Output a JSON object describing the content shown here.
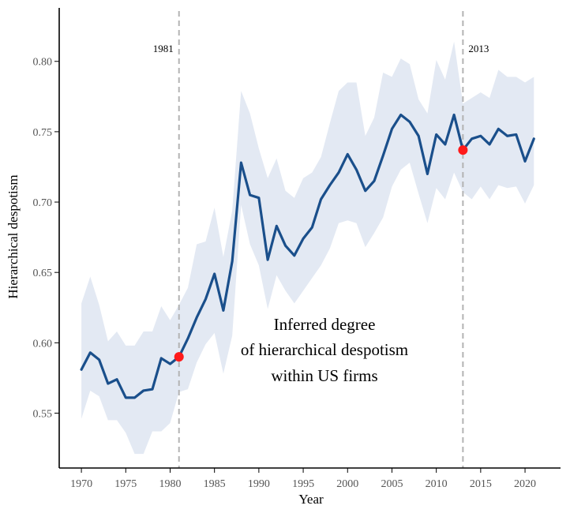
{
  "chart_data": {
    "type": "line",
    "xlabel": "Year",
    "ylabel": "Hierarchical despotism",
    "xlim": [
      1967.5,
      2024
    ],
    "ylim": [
      0.511,
      0.838
    ],
    "x_ticks": [
      1970,
      1975,
      1980,
      1985,
      1990,
      1995,
      2000,
      2005,
      2010,
      2015,
      2020
    ],
    "y_ticks": [
      0.55,
      0.6,
      0.65,
      0.7,
      0.75,
      0.8
    ],
    "y_tick_labels": [
      "0.55",
      "0.60",
      "0.65",
      "0.70",
      "0.75",
      "0.80"
    ],
    "grid": false,
    "colors": {
      "line": "#1a4f8b",
      "band": "#e3e9f3",
      "marker": "#ff1a1a",
      "vline": "#b3b3b3"
    },
    "series": [
      {
        "x": [
          1970,
          1971,
          1972,
          1973,
          1974,
          1975,
          1976,
          1977,
          1978,
          1979,
          1980,
          1981,
          1982,
          1983,
          1984,
          1985,
          1986,
          1987,
          1988,
          1989,
          1990,
          1991,
          1992,
          1993,
          1994,
          1995,
          1996,
          1997,
          1998,
          1999,
          2000,
          2001,
          2002,
          2003,
          2004,
          2005,
          2006,
          2007,
          2008,
          2009,
          2010,
          2011,
          2012,
          2013,
          2014,
          2015,
          2016,
          2017,
          2018,
          2019,
          2020,
          2021
        ],
        "y": [
          0.581,
          0.593,
          0.588,
          0.571,
          0.574,
          0.561,
          0.561,
          0.566,
          0.567,
          0.589,
          0.585,
          0.59,
          0.603,
          0.618,
          0.631,
          0.649,
          0.623,
          0.658,
          0.728,
          0.705,
          0.703,
          0.659,
          0.683,
          0.669,
          0.662,
          0.674,
          0.682,
          0.702,
          0.712,
          0.721,
          0.734,
          0.723,
          0.708,
          0.715,
          0.733,
          0.752,
          0.762,
          0.757,
          0.747,
          0.72,
          0.748,
          0.741,
          0.762,
          0.737,
          0.745,
          0.747,
          0.741,
          0.752,
          0.747,
          0.748,
          0.729,
          0.745
        ],
        "lower": [
          0.546,
          0.566,
          0.562,
          0.545,
          0.545,
          0.536,
          0.521,
          0.521,
          0.537,
          0.537,
          0.543,
          0.565,
          0.567,
          0.586,
          0.599,
          0.607,
          0.578,
          0.605,
          0.698,
          0.67,
          0.655,
          0.624,
          0.648,
          0.637,
          0.628,
          0.637,
          0.646,
          0.655,
          0.667,
          0.685,
          0.687,
          0.685,
          0.668,
          0.678,
          0.689,
          0.711,
          0.723,
          0.728,
          0.706,
          0.685,
          0.71,
          0.702,
          0.721,
          0.707,
          0.702,
          0.711,
          0.702,
          0.712,
          0.71,
          0.711,
          0.699,
          0.712
        ],
        "upper": [
          0.628,
          0.647,
          0.627,
          0.601,
          0.608,
          0.598,
          0.598,
          0.608,
          0.608,
          0.626,
          0.616,
          0.627,
          0.639,
          0.67,
          0.672,
          0.696,
          0.661,
          0.694,
          0.779,
          0.763,
          0.738,
          0.717,
          0.731,
          0.708,
          0.703,
          0.717,
          0.721,
          0.732,
          0.756,
          0.779,
          0.785,
          0.785,
          0.747,
          0.76,
          0.792,
          0.789,
          0.802,
          0.798,
          0.773,
          0.763,
          0.801,
          0.787,
          0.814,
          0.77,
          0.774,
          0.778,
          0.774,
          0.794,
          0.789,
          0.789,
          0.785,
          0.789
        ]
      }
    ],
    "highlight_points": [
      {
        "x": 1981,
        "y": 0.59
      },
      {
        "x": 2013,
        "y": 0.737
      }
    ],
    "vertical_lines": [
      {
        "x": 1981,
        "label": "1981"
      },
      {
        "x": 2013,
        "label": "2013"
      }
    ],
    "annotation": [
      "Inferred degree",
      "of hierarchical despotism",
      "within US firms"
    ]
  }
}
